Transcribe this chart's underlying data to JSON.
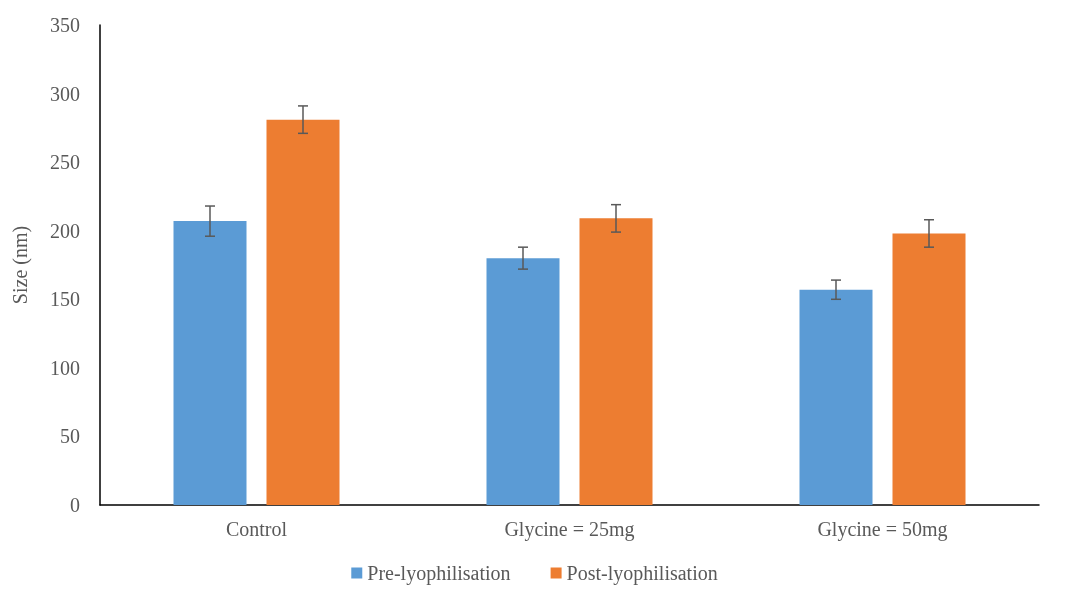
{
  "chart_data": {
    "type": "bar",
    "ylabel": "Size (nm)",
    "categories": [
      "Control",
      "Glycine = 25mg",
      "Glycine = 50mg"
    ],
    "series": [
      {
        "name": "Pre-lyophilisation",
        "color": "#5b9bd5",
        "values": [
          207,
          180,
          157
        ],
        "errors": [
          11,
          8,
          7
        ]
      },
      {
        "name": "Post-lyophilisation",
        "color": "#ed7d31",
        "values": [
          281,
          209,
          198
        ],
        "errors": [
          10,
          10,
          10
        ]
      }
    ],
    "ylim": [
      0,
      350
    ],
    "yticks": [
      0,
      50,
      100,
      150,
      200,
      250,
      300,
      350
    ],
    "grid": false,
    "legend": "bottom"
  }
}
